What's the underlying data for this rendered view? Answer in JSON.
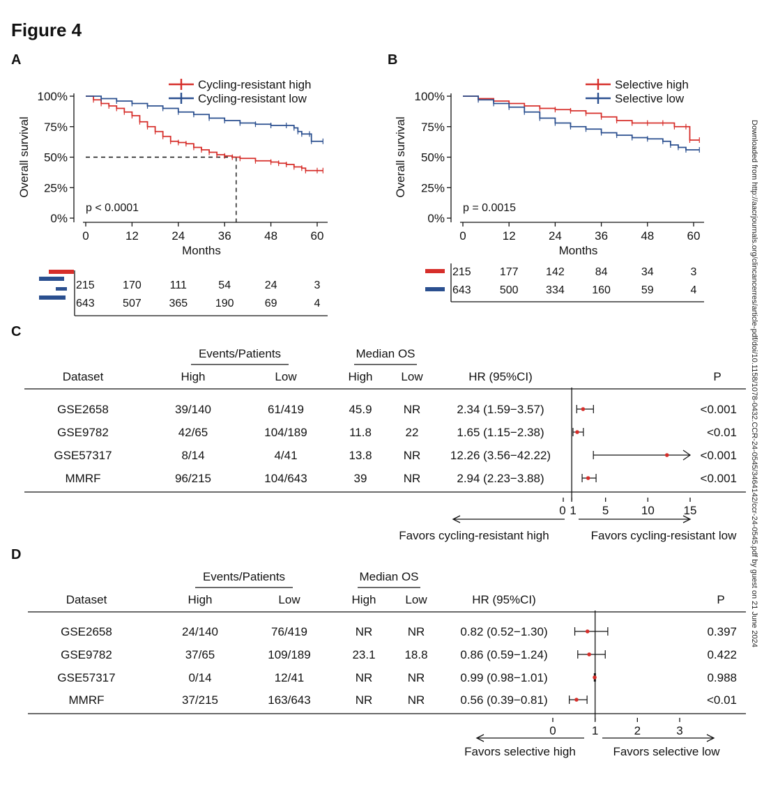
{
  "figure_title": "Figure 4",
  "side_note": "Downloaded from http://aacrjournals.org/clincancerres/article-pdf/doi/10.1158/1078-0432.CCR-24-0545/3464142/ccr-24-0545.pdf by guest on 21 June 2024",
  "colors": {
    "high": "#d62e2a",
    "low": "#2a4f8f",
    "point": "#d62e2a",
    "axis": "#111111"
  },
  "chart_data": [
    {
      "panel": "A",
      "type": "line",
      "subtype": "kaplan-meier",
      "xlabel": "Months",
      "ylabel": "Overall survival",
      "xlim": [
        0,
        60
      ],
      "ylim": [
        0,
        1
      ],
      "xticks": [
        "0",
        "12",
        "24",
        "36",
        "48",
        "60"
      ],
      "yticks": [
        "0%",
        "25%",
        "50%",
        "75%",
        "100%"
      ],
      "pvalue": "p < 0.0001",
      "median_line": {
        "y": 0.5,
        "x": 39
      },
      "legend_position": "top-right",
      "series": [
        {
          "name": "Cycling-resistant high",
          "color": "#d62e2a",
          "points": [
            [
              0,
              1.0
            ],
            [
              2,
              0.97
            ],
            [
              4,
              0.94
            ],
            [
              6,
              0.92
            ],
            [
              8,
              0.9
            ],
            [
              10,
              0.87
            ],
            [
              12,
              0.84
            ],
            [
              14,
              0.79
            ],
            [
              16,
              0.75
            ],
            [
              18,
              0.71
            ],
            [
              20,
              0.67
            ],
            [
              22,
              0.63
            ],
            [
              24,
              0.62
            ],
            [
              26,
              0.61
            ],
            [
              28,
              0.58
            ],
            [
              30,
              0.56
            ],
            [
              32,
              0.54
            ],
            [
              34,
              0.52
            ],
            [
              36,
              0.51
            ],
            [
              38,
              0.5
            ],
            [
              40,
              0.49
            ],
            [
              44,
              0.47
            ],
            [
              48,
              0.46
            ],
            [
              50,
              0.45
            ],
            [
              52,
              0.44
            ],
            [
              54,
              0.42
            ],
            [
              56,
              0.41
            ],
            [
              57,
              0.39
            ],
            [
              60,
              0.39
            ],
            [
              61.5,
              0.39
            ]
          ],
          "risk_table": [
            215,
            170,
            111,
            54,
            24,
            3
          ]
        },
        {
          "name": "Cycling-resistant low",
          "color": "#2a4f8f",
          "points": [
            [
              0,
              1.0
            ],
            [
              4,
              0.98
            ],
            [
              8,
              0.96
            ],
            [
              12,
              0.94
            ],
            [
              16,
              0.92
            ],
            [
              20,
              0.9
            ],
            [
              24,
              0.87
            ],
            [
              28,
              0.85
            ],
            [
              32,
              0.82
            ],
            [
              36,
              0.8
            ],
            [
              40,
              0.78
            ],
            [
              44,
              0.77
            ],
            [
              48,
              0.76
            ],
            [
              52,
              0.76
            ],
            [
              54,
              0.74
            ],
            [
              55,
              0.71
            ],
            [
              56,
              0.69
            ],
            [
              58,
              0.69
            ],
            [
              58.5,
              0.63
            ],
            [
              61.5,
              0.63
            ]
          ],
          "risk_table": [
            643,
            507,
            365,
            190,
            69,
            4
          ]
        }
      ]
    },
    {
      "panel": "B",
      "type": "line",
      "subtype": "kaplan-meier",
      "xlabel": "Months",
      "ylabel": "Overall survival",
      "xlim": [
        0,
        60
      ],
      "ylim": [
        0,
        1
      ],
      "xticks": [
        "0",
        "12",
        "24",
        "36",
        "48",
        "60"
      ],
      "yticks": [
        "0%",
        "25%",
        "50%",
        "75%",
        "100%"
      ],
      "pvalue": "p = 0.0015",
      "legend_position": "top-right",
      "series": [
        {
          "name": "Selective high",
          "color": "#d62e2a",
          "points": [
            [
              0,
              1.0
            ],
            [
              4,
              0.98
            ],
            [
              8,
              0.96
            ],
            [
              12,
              0.94
            ],
            [
              16,
              0.92
            ],
            [
              20,
              0.9
            ],
            [
              24,
              0.89
            ],
            [
              28,
              0.88
            ],
            [
              32,
              0.86
            ],
            [
              36,
              0.83
            ],
            [
              40,
              0.8
            ],
            [
              44,
              0.78
            ],
            [
              48,
              0.78
            ],
            [
              52,
              0.78
            ],
            [
              55,
              0.75
            ],
            [
              58,
              0.75
            ],
            [
              59,
              0.64
            ],
            [
              61.5,
              0.64
            ]
          ],
          "risk_table": [
            215,
            177,
            142,
            84,
            34,
            3
          ]
        },
        {
          "name": "Selective low",
          "color": "#2a4f8f",
          "points": [
            [
              0,
              1.0
            ],
            [
              4,
              0.97
            ],
            [
              8,
              0.94
            ],
            [
              12,
              0.91
            ],
            [
              16,
              0.87
            ],
            [
              20,
              0.82
            ],
            [
              24,
              0.78
            ],
            [
              28,
              0.75
            ],
            [
              32,
              0.73
            ],
            [
              36,
              0.7
            ],
            [
              40,
              0.68
            ],
            [
              44,
              0.66
            ],
            [
              48,
              0.65
            ],
            [
              52,
              0.63
            ],
            [
              54,
              0.6
            ],
            [
              56,
              0.58
            ],
            [
              58,
              0.56
            ],
            [
              61.5,
              0.56
            ]
          ],
          "risk_table": [
            643,
            500,
            334,
            160,
            59,
            4
          ]
        }
      ]
    },
    {
      "panel": "C",
      "type": "table",
      "subtype": "forest",
      "headers": {
        "events_patients": "Events/Patients",
        "median_os": "Median OS",
        "dataset": "Dataset",
        "high": "High",
        "low": "Low",
        "hr": "HR (95%CI)",
        "p": "P"
      },
      "xlim": [
        0,
        15
      ],
      "xticks": [
        0,
        1,
        5,
        10,
        15
      ],
      "reference": 1,
      "favors_left": "Favors cycling-resistant high",
      "favors_right": "Favors cycling-resistant low",
      "rows": [
        {
          "dataset": "GSE2658",
          "events_high": "39/140",
          "events_low": "61/419",
          "os_high": "45.9",
          "os_low": "NR",
          "hr_text": "2.34 (1.59−3.57)",
          "hr": 2.34,
          "ci": [
            1.59,
            3.57
          ],
          "p": "<0.001"
        },
        {
          "dataset": "GSE9782",
          "events_high": "42/65",
          "events_low": "104/189",
          "os_high": "11.8",
          "os_low": "22",
          "hr_text": "1.65 (1.15−2.38)",
          "hr": 1.65,
          "ci": [
            1.15,
            2.38
          ],
          "p": "<0.01"
        },
        {
          "dataset": "GSE57317",
          "events_high": "8/14",
          "events_low": "4/41",
          "os_high": "13.8",
          "os_low": "NR",
          "hr_text": "12.26 (3.56−42.22)",
          "hr": 12.26,
          "ci": [
            3.56,
            42.22
          ],
          "p": "<0.001"
        },
        {
          "dataset": "MMRF",
          "events_high": "96/215",
          "events_low": "104/643",
          "os_high": "39",
          "os_low": "NR",
          "hr_text": "2.94 (2.23−3.88)",
          "hr": 2.94,
          "ci": [
            2.23,
            3.88
          ],
          "p": "<0.001"
        }
      ]
    },
    {
      "panel": "D",
      "type": "table",
      "subtype": "forest",
      "headers": {
        "events_patients": "Events/Patients",
        "median_os": "Median OS",
        "dataset": "Dataset",
        "high": "High",
        "low": "Low",
        "hr": "HR (95%CI)",
        "p": "P"
      },
      "xlim": [
        0,
        3
      ],
      "xticks": [
        0,
        1,
        2,
        3
      ],
      "reference": 1,
      "favors_left": "Favors selective high",
      "favors_right": "Favors selective low",
      "rows": [
        {
          "dataset": "GSE2658",
          "events_high": "24/140",
          "events_low": "76/419",
          "os_high": "NR",
          "os_low": "NR",
          "hr_text": "0.82 (0.52−1.30)",
          "hr": 0.82,
          "ci": [
            0.52,
            1.3
          ],
          "p": "0.397"
        },
        {
          "dataset": "GSE9782",
          "events_high": "37/65",
          "events_low": "109/189",
          "os_high": "23.1",
          "os_low": "18.8",
          "hr_text": "0.86 (0.59−1.24)",
          "hr": 0.86,
          "ci": [
            0.59,
            1.24
          ],
          "p": "0.422"
        },
        {
          "dataset": "GSE57317",
          "events_high": "0/14",
          "events_low": "12/41",
          "os_high": "NR",
          "os_low": "NR",
          "hr_text": "0.99 (0.98−1.01)",
          "hr": 0.99,
          "ci": [
            0.98,
            1.01
          ],
          "p": "0.988"
        },
        {
          "dataset": "MMRF",
          "events_high": "37/215",
          "events_low": "163/643",
          "os_high": "NR",
          "os_low": "NR",
          "hr_text": "0.56 (0.39−0.81)",
          "hr": 0.56,
          "ci": [
            0.39,
            0.81
          ],
          "p": "<0.01"
        }
      ]
    }
  ]
}
